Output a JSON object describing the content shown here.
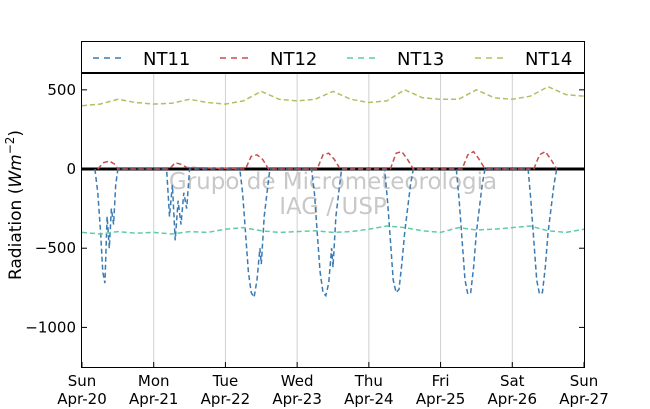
{
  "chart_data": {
    "type": "line",
    "ylabel": "Radiation (Wm^-2)",
    "ylabel_main": "Radiation (",
    "ylabel_unit": "Wm",
    "ylabel_exp": "−2",
    "ylabel_close": ")",
    "ylim": [
      -1250,
      600
    ],
    "yticks": [
      500,
      0,
      -500,
      -1000
    ],
    "ytick_labels": [
      "500",
      "0",
      "−500",
      "−1000"
    ],
    "xlim": [
      0,
      7
    ],
    "xticks": [
      {
        "day": "Sun",
        "date": "Apr-20"
      },
      {
        "day": "Mon",
        "date": "Apr-21"
      },
      {
        "day": "Tue",
        "date": "Apr-22"
      },
      {
        "day": "Wed",
        "date": "Apr-23"
      },
      {
        "day": "Thu",
        "date": "Apr-24"
      },
      {
        "day": "Fri",
        "date": "Apr-25"
      },
      {
        "day": "Sat",
        "date": "Apr-26"
      },
      {
        "day": "Sun",
        "date": "Apr-27"
      }
    ],
    "grid": "vertical",
    "legend": "top",
    "zero_line": true,
    "watermark": [
      "Grupo de Micrometeorologia",
      "IAG / USP"
    ],
    "series": [
      {
        "name": "NT11",
        "color": "#3a7bb5",
        "x": [
          0.18,
          0.22,
          0.26,
          0.29,
          0.32,
          0.35,
          0.38,
          0.41,
          0.44,
          0.47,
          0.5,
          1.18,
          1.22,
          1.26,
          1.3,
          1.34,
          1.38,
          1.42,
          1.46,
          1.5,
          2.2,
          2.24,
          2.28,
          2.32,
          2.36,
          2.4,
          2.44,
          2.48,
          2.5,
          2.54,
          2.58,
          2.62,
          3.2,
          3.24,
          3.28,
          3.32,
          3.36,
          3.4,
          3.44,
          3.48,
          3.5,
          3.54,
          3.58,
          3.62,
          4.22,
          4.26,
          4.3,
          4.34,
          4.38,
          4.42,
          4.46,
          4.5,
          4.54,
          4.58,
          4.62,
          5.22,
          5.26,
          5.3,
          5.34,
          5.38,
          5.42,
          5.46,
          5.5,
          5.54,
          5.58,
          5.62,
          6.22,
          6.26,
          6.3,
          6.34,
          6.38,
          6.42,
          6.46,
          6.5,
          6.54,
          6.58,
          6.62
        ],
        "y": [
          0,
          -150,
          -400,
          -650,
          -720,
          -300,
          -500,
          -250,
          -350,
          -100,
          0,
          0,
          -300,
          -100,
          -450,
          -200,
          -350,
          -150,
          -250,
          0,
          0,
          -150,
          -400,
          -650,
          -780,
          -810,
          -700,
          -500,
          -600,
          -300,
          -150,
          0,
          0,
          -150,
          -400,
          -650,
          -780,
          -800,
          -720,
          -500,
          -620,
          -300,
          -150,
          0,
          0,
          -200,
          -450,
          -700,
          -780,
          -760,
          -600,
          -400,
          -250,
          -100,
          0,
          0,
          -200,
          -450,
          -700,
          -790,
          -780,
          -620,
          -400,
          -250,
          -100,
          0,
          0,
          -200,
          -450,
          -700,
          -790,
          -780,
          -620,
          -400,
          -250,
          -100,
          0
        ]
      },
      {
        "name": "NT12",
        "color": "#c44e52",
        "x": [
          0.22,
          0.3,
          0.38,
          0.46,
          0.5,
          1.22,
          1.3,
          1.38,
          1.46,
          2.28,
          2.36,
          2.44,
          2.52,
          2.6,
          3.28,
          3.36,
          3.44,
          3.52,
          3.6,
          4.3,
          4.38,
          4.46,
          4.54,
          4.62,
          5.3,
          5.38,
          5.46,
          5.54,
          5.62,
          6.3,
          6.38,
          6.46,
          6.54,
          6.62
        ],
        "y": [
          0,
          40,
          50,
          30,
          0,
          0,
          40,
          30,
          10,
          0,
          80,
          90,
          60,
          0,
          0,
          90,
          100,
          60,
          0,
          0,
          100,
          110,
          60,
          0,
          0,
          90,
          110,
          60,
          0,
          0,
          90,
          110,
          60,
          0
        ]
      },
      {
        "name": "NT13",
        "color": "#5fcca5",
        "x": [
          0,
          0.25,
          0.5,
          0.75,
          1,
          1.25,
          1.5,
          1.75,
          2,
          2.25,
          2.5,
          2.75,
          3,
          3.25,
          3.5,
          3.75,
          4,
          4.25,
          4.5,
          4.75,
          5,
          5.25,
          5.5,
          5.75,
          6,
          6.25,
          6.5,
          6.75,
          7
        ],
        "y": [
          -400,
          -410,
          -395,
          -405,
          -400,
          -410,
          -395,
          -400,
          -380,
          -370,
          -390,
          -400,
          -395,
          -390,
          -400,
          -395,
          -380,
          -360,
          -370,
          -390,
          -400,
          -370,
          -385,
          -380,
          -370,
          -360,
          -390,
          -400,
          -380
        ]
      },
      {
        "name": "NT14",
        "color": "#b5bd61",
        "x": [
          0,
          0.25,
          0.5,
          0.75,
          1,
          1.25,
          1.5,
          1.75,
          2,
          2.25,
          2.5,
          2.75,
          3,
          3.25,
          3.5,
          3.75,
          4,
          4.25,
          4.5,
          4.75,
          5,
          5.25,
          5.5,
          5.75,
          6,
          6.25,
          6.5,
          6.75,
          7
        ],
        "y": [
          400,
          410,
          440,
          420,
          410,
          415,
          440,
          420,
          410,
          430,
          490,
          440,
          430,
          440,
          490,
          440,
          420,
          430,
          500,
          450,
          440,
          440,
          500,
          450,
          440,
          460,
          520,
          470,
          460
        ]
      }
    ]
  }
}
